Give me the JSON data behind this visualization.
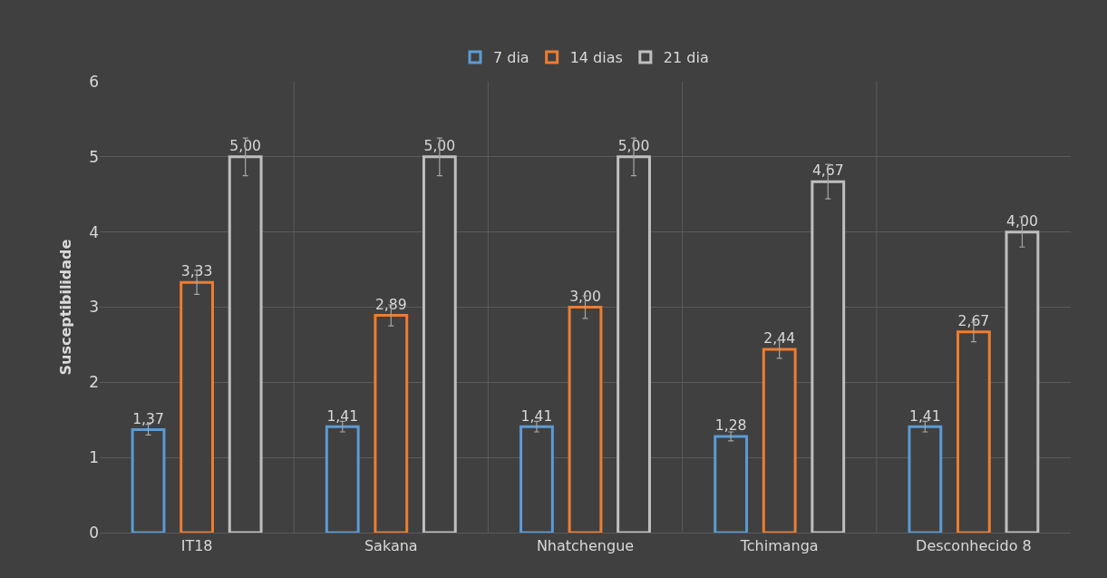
{
  "chart_data": {
    "type": "bar",
    "ylabel": "Susceptibilidade",
    "categories": [
      "IT18",
      "Sakana",
      "Nhatchengue",
      "Tchimanga",
      "Desconhecido 8"
    ],
    "series": [
      {
        "name": "7 dia",
        "color": "#5b9bd5",
        "values": [
          1.37,
          1.41,
          1.41,
          1.28,
          1.41
        ],
        "errors": [
          0.07,
          0.07,
          0.07,
          0.06,
          0.07
        ],
        "value_labels": [
          "1,37",
          "1,41",
          "1,41",
          "1,28",
          "1,41"
        ]
      },
      {
        "name": "14 dias",
        "color": "#ed7d31",
        "values": [
          3.33,
          2.89,
          3.0,
          2.44,
          2.67
        ],
        "errors": [
          0.16,
          0.14,
          0.15,
          0.12,
          0.13
        ],
        "value_labels": [
          "3,33",
          "2,89",
          "3,00",
          "2,44",
          "2,67"
        ]
      },
      {
        "name": "21 dia",
        "color": "#bfbfbf",
        "values": [
          5.0,
          5.0,
          5.0,
          4.67,
          4.0
        ],
        "errors": [
          0.25,
          0.25,
          0.25,
          0.23,
          0.2
        ],
        "value_labels": [
          "5,00",
          "5,00",
          "5,00",
          "4,67",
          "4,00"
        ]
      }
    ],
    "ylim": [
      0,
      6
    ],
    "yticks": [
      0,
      1,
      2,
      3,
      4,
      5,
      6
    ],
    "grid": true,
    "legend": "top"
  }
}
